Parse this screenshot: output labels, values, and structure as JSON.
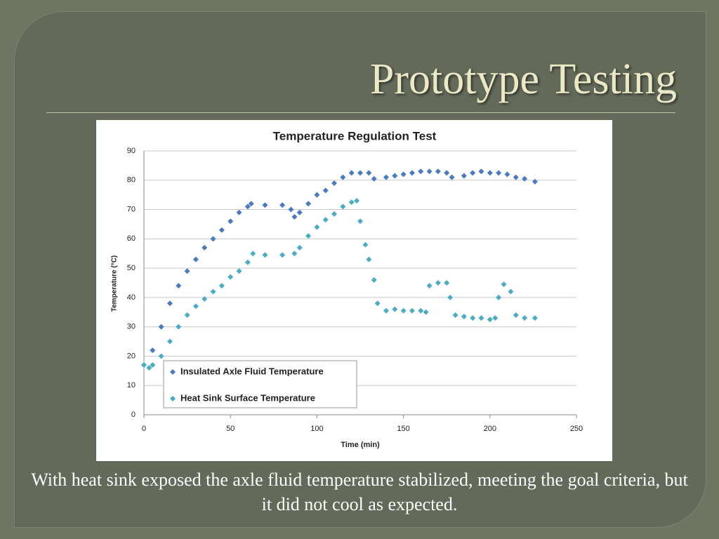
{
  "slide": {
    "title": "Prototype Testing",
    "caption": "With heat sink exposed the axle fluid temperature stabilized, meeting the goal criteria, but it did not cool as expected."
  },
  "chart_data": {
    "type": "scatter",
    "title": "Temperature Regulation Test",
    "x_label": "Time (min)",
    "y_label": "Temperature (°C)",
    "xlim": [
      0,
      250
    ],
    "xticks": [
      0,
      50,
      100,
      150,
      200,
      250
    ],
    "ylim": [
      0,
      90
    ],
    "yticks": [
      0,
      10,
      20,
      30,
      40,
      50,
      60,
      70,
      80,
      90
    ],
    "grid": true,
    "legend": "lower left",
    "series": [
      {
        "name": "Insulated Axle Fluid Temperature",
        "color": "#4a7abf",
        "x": [
          0,
          5,
          10,
          15,
          20,
          25,
          30,
          35,
          40,
          45,
          50,
          55,
          60,
          62,
          70,
          80,
          85,
          87,
          90,
          95,
          100,
          105,
          110,
          115,
          120,
          125,
          130,
          133,
          140,
          145,
          150,
          155,
          160,
          165,
          170,
          175,
          178,
          185,
          190,
          195,
          200,
          205,
          210,
          215,
          220,
          226
        ],
        "values": [
          17,
          22,
          30,
          38,
          44,
          49,
          53,
          57,
          60,
          63,
          66,
          69,
          71,
          72,
          71.5,
          71.5,
          70,
          67.5,
          69,
          72,
          75,
          76.5,
          79,
          81,
          82.5,
          82.5,
          82.5,
          80.5,
          81,
          81.5,
          82,
          82.5,
          83,
          83,
          83,
          82.5,
          81,
          81.5,
          82.5,
          83,
          82.5,
          82.5,
          82,
          81,
          80.5,
          79.5
        ]
      },
      {
        "name": "Heat Sink Surface Temperature",
        "color": "#4bacc6",
        "x": [
          0,
          3,
          5,
          10,
          15,
          20,
          25,
          30,
          35,
          40,
          45,
          50,
          55,
          60,
          63,
          70,
          80,
          87,
          90,
          95,
          100,
          105,
          110,
          115,
          120,
          123,
          125,
          128,
          130,
          133,
          135,
          140,
          145,
          150,
          155,
          160,
          163,
          165,
          170,
          175,
          177,
          180,
          185,
          190,
          195,
          200,
          203,
          205,
          208,
          212,
          215,
          220,
          226
        ],
        "values": [
          17,
          16,
          17,
          20,
          25,
          30,
          34,
          37,
          39.5,
          42,
          44,
          47,
          49,
          52,
          55,
          54.5,
          54.5,
          55,
          57,
          61,
          64,
          66.5,
          68.5,
          71,
          72.5,
          73,
          66,
          58,
          53,
          46,
          38,
          35.5,
          36,
          35.5,
          35.5,
          35.5,
          35,
          44,
          45,
          45,
          40,
          34,
          33.5,
          33,
          33,
          32.5,
          33,
          40,
          44.5,
          42,
          34,
          33,
          33
        ]
      }
    ]
  }
}
